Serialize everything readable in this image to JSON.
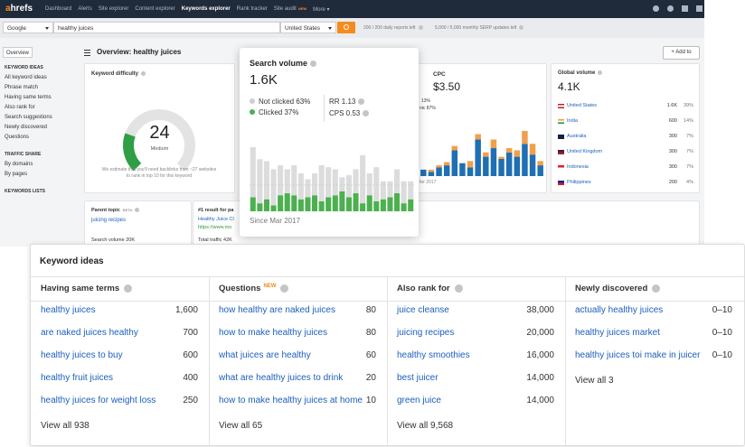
{
  "nav": {
    "logo_a": "a",
    "logo_rest": "hrefs",
    "items": [
      "Dashboard",
      "Alerts",
      "Site explorer",
      "Content explorer",
      "Keywords explorer",
      "Rank tracker",
      "Site audit",
      "More ▾"
    ],
    "badge": "NEW"
  },
  "search": {
    "engine": "Google",
    "query": "healthy juices",
    "country": "United States",
    "reports": "200 / 200 daily reports left",
    "serp": "5,000 / 5,000 monthly SERP updates left"
  },
  "sidebar": {
    "overview": "Overview",
    "sections": [
      {
        "title": "KEYWORD IDEAS",
        "links": [
          "All keyword ideas",
          "Phrase match",
          "Having same terms",
          "Also rank for",
          "Search suggestions",
          "Newly discovered",
          "Questions"
        ]
      },
      {
        "title": "TRAFFIC SHARE",
        "links": [
          "By domains",
          "By pages"
        ]
      },
      {
        "title": "KEYWORDS LISTS"
      }
    ]
  },
  "header": {
    "title": "Overview: healthy juices",
    "add": "+ Add to"
  },
  "difficulty": {
    "title": "Keyword difficulty",
    "value": 24,
    "scale": [
      0,
      100
    ],
    "label": "Medium",
    "note": "We estimate that you'll need backlinks from ~27 websites to rank in top 10 for this keyword"
  },
  "cpc": {
    "title": "CPC",
    "value": "$3.50",
    "paid": "13%",
    "organic": "nic 87%",
    "since": "fer 2017",
    "chart": {
      "type": "bar",
      "stacked": true,
      "series": [
        {
          "color": "#1f6fb2",
          "values": [
            6,
            4,
            8,
            10,
            24,
            12,
            8,
            34,
            18,
            26,
            16,
            22,
            18,
            30,
            20,
            10
          ]
        },
        {
          "color": "#f0a04b",
          "values": [
            0,
            2,
            2,
            3,
            4,
            0,
            6,
            5,
            4,
            8,
            2,
            4,
            6,
            12,
            10,
            4
          ]
        }
      ]
    }
  },
  "global": {
    "title": "Global volume",
    "value": "4.1K",
    "rows": [
      [
        "United States",
        "1.6K",
        "39%"
      ],
      [
        "India",
        "600",
        "14%"
      ],
      [
        "Australia",
        "300",
        "7%"
      ],
      [
        "United Kingdom",
        "300",
        "7%"
      ],
      [
        "Indonesia",
        "300",
        "7%"
      ],
      [
        "Philippines",
        "200",
        "4%"
      ]
    ]
  },
  "parent": {
    "title": "Parent topic",
    "badge": "BETA",
    "link": "juicing recipes",
    "volume": "Search volume 20K"
  },
  "top_result": {
    "title": "#1 result for pa",
    "link": "Healthy Juice Cl",
    "url": "https://www.mo",
    "traffic": "Total traffic 42K"
  },
  "popup": {
    "title": "Search volume",
    "value": "1.6K",
    "not_clicked": "Not clicked",
    "not_clicked_pct": "63%",
    "clicked": "Clicked",
    "clicked_pct": "37%",
    "rr": "RR 1.13",
    "cps": "CPS 0.53",
    "since": "Since Mar 2017",
    "chart": {
      "type": "bar",
      "stacked": true,
      "series": [
        {
          "color": "#4cb04f",
          "values": [
            14,
            8,
            12,
            6,
            16,
            18,
            16,
            12,
            14,
            16,
            10,
            14,
            16,
            20,
            14,
            18,
            8,
            16,
            10,
            12,
            14,
            18,
            8,
            12
          ]
        },
        {
          "color": "#dcdcdc",
          "values": [
            50,
            44,
            38,
            36,
            30,
            24,
            30,
            26,
            18,
            22,
            36,
            30,
            26,
            14,
            22,
            24,
            48,
            22,
            34,
            18,
            16,
            24,
            22,
            18
          ]
        }
      ]
    }
  },
  "ideas": {
    "title": "Keyword ideas",
    "columns": [
      {
        "title": "Having same terms",
        "rows": [
          [
            "healthy juices",
            "1,600"
          ],
          [
            "are naked juices healthy",
            "700"
          ],
          [
            "healthy juices to buy",
            "600"
          ],
          [
            "healthy fruit juices",
            "400"
          ],
          [
            "healthy juices for weight loss",
            "250"
          ]
        ],
        "more": "View all 938"
      },
      {
        "title": "Questions",
        "badge": "NEW",
        "rows": [
          [
            "how healthy are naked juices",
            "80"
          ],
          [
            "how to make healthy juices",
            "80"
          ],
          [
            "what juices are healthy",
            "60"
          ],
          [
            "what are healthy juices to drink",
            "20"
          ],
          [
            "how to make healthy juices at home",
            "10"
          ]
        ],
        "more": "View all 65"
      },
      {
        "title": "Also rank for",
        "rows": [
          [
            "juice cleanse",
            "38,000"
          ],
          [
            "juicing recipes",
            "20,000"
          ],
          [
            "healthy smoothies",
            "16,000"
          ],
          [
            "best juicer",
            "14,000"
          ],
          [
            "green juice",
            "14,000"
          ]
        ],
        "more": "View all 9,568"
      },
      {
        "title": "Newly discovered",
        "rows": [
          [
            "actually healthy juices",
            "0–10"
          ],
          [
            "healthy juices market",
            "0–10"
          ],
          [
            "healthy juices toi make in juicer",
            "0–10"
          ]
        ],
        "more": "View all 3"
      }
    ]
  }
}
